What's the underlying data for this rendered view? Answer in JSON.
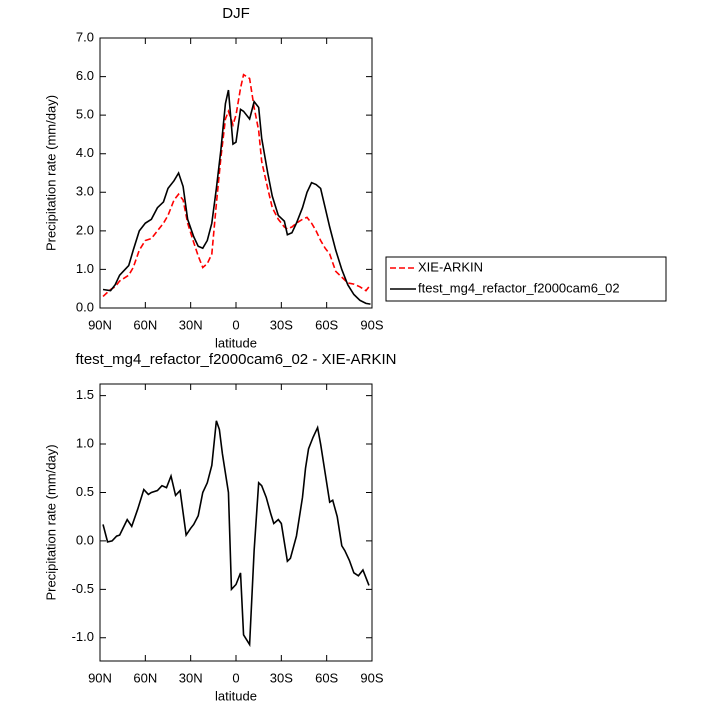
{
  "chart_data": [
    {
      "type": "line",
      "title": "DJF",
      "xlabel": "latitude",
      "ylabel": "Precipitation rate (mm/day)",
      "x": [
        88,
        83,
        80,
        77,
        71,
        68,
        64,
        60,
        56,
        52,
        48,
        45,
        41,
        38,
        35,
        32,
        28,
        25,
        22,
        19,
        16,
        13,
        10,
        7,
        5,
        2,
        0,
        -3,
        -5,
        -9,
        -12,
        -15,
        -17,
        -21,
        -24,
        -28,
        -32,
        -34,
        -37,
        -40,
        -44,
        -47,
        -50,
        -53,
        -56,
        -59,
        -62,
        -66,
        -70,
        -74,
        -78,
        -82,
        -86,
        -89
      ],
      "series": [
        {
          "name": "XIE-ARKIN",
          "color": "#ff0000",
          "line_style": "dashed",
          "values": [
            0.3,
            0.48,
            0.55,
            0.7,
            0.85,
            1.05,
            1.5,
            1.75,
            1.8,
            2.0,
            2.2,
            2.4,
            2.8,
            2.95,
            2.8,
            2.2,
            1.7,
            1.35,
            1.05,
            1.15,
            1.4,
            2.7,
            3.9,
            4.9,
            5.1,
            4.75,
            5.0,
            5.7,
            6.05,
            5.95,
            5.2,
            4.6,
            3.8,
            3.1,
            2.6,
            2.3,
            2.1,
            2.05,
            2.1,
            2.2,
            2.3,
            2.35,
            2.2,
            2.0,
            1.75,
            1.55,
            1.4,
            0.95,
            0.8,
            0.65,
            0.62,
            0.55,
            0.45,
            0.6
          ]
        },
        {
          "name": "ftest_mg4_refactor_f2000cam6_02",
          "color": "#000000",
          "line_style": "solid",
          "values": [
            0.48,
            0.45,
            0.6,
            0.85,
            1.1,
            1.5,
            2.0,
            2.2,
            2.3,
            2.6,
            2.75,
            3.1,
            3.3,
            3.5,
            3.15,
            2.3,
            1.85,
            1.6,
            1.55,
            1.75,
            2.2,
            3.1,
            4.1,
            5.3,
            5.65,
            4.25,
            4.3,
            5.15,
            5.1,
            4.9,
            5.35,
            5.2,
            4.4,
            3.5,
            2.9,
            2.4,
            2.25,
            1.9,
            1.95,
            2.2,
            2.6,
            3.0,
            3.25,
            3.2,
            3.1,
            2.6,
            2.1,
            1.5,
            1.0,
            0.6,
            0.35,
            0.2,
            0.12,
            0.1
          ]
        }
      ],
      "xlim": [
        90,
        -90
      ],
      "xticks": [
        {
          "value": 90,
          "label": "90N"
        },
        {
          "value": 60,
          "label": "60N"
        },
        {
          "value": 30,
          "label": "30N"
        },
        0,
        {
          "value": -30,
          "label": "30S"
        },
        {
          "value": -60,
          "label": "60S"
        },
        {
          "value": -90,
          "label": "90S"
        }
      ],
      "ylim": [
        0,
        7
      ],
      "yticks": [
        {
          "value": 0,
          "label": "0.0"
        },
        {
          "value": 1,
          "label": "1.0"
        },
        {
          "value": 2,
          "label": "2.0"
        },
        {
          "value": 3,
          "label": "3.0"
        },
        {
          "value": 4,
          "label": "4.0"
        },
        {
          "value": 5,
          "label": "5.0"
        },
        {
          "value": 6,
          "label": "6.0"
        },
        {
          "value": 7,
          "label": "7.0"
        }
      ],
      "legend": "right"
    },
    {
      "type": "line",
      "title": "ftest_mg4_refactor_f2000cam6_02 - XIE-ARKIN",
      "xlabel": "latitude",
      "ylabel": "Precipitation rate (mm/day)",
      "x": [
        88,
        85,
        82,
        79,
        77,
        72,
        69,
        65,
        61,
        58,
        56,
        52,
        49,
        46,
        43,
        40,
        37,
        33,
        30,
        28,
        25,
        22,
        19,
        16,
        13,
        11,
        9,
        5,
        3,
        0,
        -3,
        -5,
        -9,
        -12,
        -15,
        -17,
        -20,
        -23,
        -25,
        -28,
        -30,
        -34,
        -36,
        -40,
        -44,
        -46,
        -48,
        -51,
        -54,
        -56,
        -59,
        -62,
        -64,
        -67,
        -70,
        -72,
        -75,
        -78,
        -81,
        -84,
        -88
      ],
      "series": [
        {
          "name": "ftest_mg4_refactor_f2000cam6_02 - XIE-ARKIN",
          "color": "#000000",
          "line_style": "solid",
          "values": [
            0.17,
            -0.01,
            0.0,
            0.05,
            0.06,
            0.22,
            0.15,
            0.33,
            0.53,
            0.48,
            0.5,
            0.52,
            0.57,
            0.55,
            0.67,
            0.47,
            0.52,
            0.06,
            0.13,
            0.17,
            0.26,
            0.5,
            0.6,
            0.78,
            1.24,
            1.15,
            0.9,
            0.5,
            -0.5,
            -0.45,
            -0.33,
            -0.97,
            -1.07,
            -0.1,
            0.6,
            0.57,
            0.45,
            0.28,
            0.18,
            0.22,
            0.18,
            -0.21,
            -0.18,
            0.05,
            0.45,
            0.75,
            0.95,
            1.07,
            1.17,
            1.0,
            0.7,
            0.4,
            0.42,
            0.25,
            -0.05,
            -0.1,
            -0.2,
            -0.33,
            -0.36,
            -0.3,
            -0.46
          ]
        }
      ],
      "xlim": [
        90,
        -90
      ],
      "xticks": [
        {
          "value": 90,
          "label": "90N"
        },
        {
          "value": 60,
          "label": "60N"
        },
        {
          "value": 30,
          "label": "30N"
        },
        0,
        {
          "value": -30,
          "label": "30S"
        },
        {
          "value": -60,
          "label": "60S"
        },
        {
          "value": -90,
          "label": "90S"
        }
      ],
      "ylim": [
        -1.24,
        1.62
      ],
      "yticks": [
        {
          "value": -1,
          "label": "-1.0"
        },
        {
          "value": -0.5,
          "label": "-0.5"
        },
        {
          "value": 0,
          "label": "0.0"
        },
        {
          "value": 0.5,
          "label": "0.5"
        },
        {
          "value": 1,
          "label": "1.0"
        },
        {
          "value": 1.5,
          "label": "1.5"
        }
      ]
    }
  ]
}
